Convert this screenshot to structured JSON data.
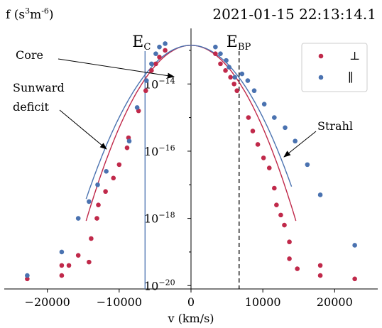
{
  "chart_data": {
    "type": "scatter",
    "timestamp": "2021-01-15 22:13:14.1",
    "ylabel": "f (s^3m^-6)",
    "xlabel": "v (km/s)",
    "xlim": [
      -26000,
      26000
    ],
    "ylim_log10": [
      -20.1,
      -12.6
    ],
    "yscale": "log",
    "x_ticks": [
      -20000,
      -10000,
      0,
      10000,
      20000
    ],
    "x_tick_labels": [
      "−20000",
      "−10000",
      "0",
      "10000",
      "20000"
    ],
    "y_ticks_log10": [
      -14,
      -16,
      -18,
      -20
    ],
    "y_tick_base": "10",
    "y_tick_exponents": [
      "−14",
      "−16",
      "−18",
      "−20"
    ],
    "legend": {
      "placement": "top-right",
      "entries": [
        "⊥",
        "∥"
      ]
    },
    "colors": {
      "perp": "#c0294a",
      "para": "#4a72b0"
    },
    "series": [
      {
        "name": "⊥",
        "color": "#c0294a",
        "points": [
          [
            -22800,
            -19.8
          ],
          [
            -18000,
            -19.7
          ],
          [
            -18000,
            -19.4
          ],
          [
            -17000,
            -19.4
          ],
          [
            -15700,
            -19.1
          ],
          [
            -14200,
            -19.3
          ],
          [
            -13900,
            -18.6
          ],
          [
            -13100,
            -18.0
          ],
          [
            -12900,
            -17.6
          ],
          [
            -11900,
            -17.2
          ],
          [
            -10800,
            -16.8
          ],
          [
            -10000,
            -16.4
          ],
          [
            -8900,
            -15.9
          ],
          [
            -8700,
            -15.6
          ],
          [
            -7300,
            -14.8
          ],
          [
            -6300,
            -14.2
          ],
          [
            -5500,
            -13.6
          ],
          [
            -4900,
            -13.4
          ],
          [
            -4400,
            -13.2
          ],
          [
            -3600,
            -13.0
          ],
          [
            3400,
            -13.1
          ],
          [
            4100,
            -13.4
          ],
          [
            4800,
            -13.6
          ],
          [
            5500,
            -13.8
          ],
          [
            6000,
            -14.0
          ],
          [
            6400,
            -14.2
          ],
          [
            8000,
            -15.0
          ],
          [
            8600,
            -15.4
          ],
          [
            9300,
            -15.8
          ],
          [
            10100,
            -16.2
          ],
          [
            10900,
            -16.5
          ],
          [
            11600,
            -17.1
          ],
          [
            11900,
            -17.6
          ],
          [
            12500,
            -17.9
          ],
          [
            13000,
            -18.2
          ],
          [
            13700,
            -18.7
          ],
          [
            13700,
            -19.2
          ],
          [
            14800,
            -19.5
          ],
          [
            18000,
            -19.4
          ],
          [
            18000,
            -19.7
          ],
          [
            22800,
            -19.8
          ]
        ]
      },
      {
        "name": "∥",
        "color": "#4a72b0",
        "points": [
          [
            -22800,
            -19.7
          ],
          [
            -18000,
            -19.0
          ],
          [
            -15700,
            -18.0
          ],
          [
            -14200,
            -17.5
          ],
          [
            -13000,
            -17.0
          ],
          [
            -11800,
            -16.6
          ],
          [
            -8600,
            -15.7
          ],
          [
            -7500,
            -14.7
          ],
          [
            -6200,
            -13.9
          ],
          [
            -5500,
            -13.4
          ],
          [
            -4900,
            -13.1
          ],
          [
            -4400,
            -12.9
          ],
          [
            -3600,
            -12.8
          ],
          [
            3400,
            -12.9
          ],
          [
            4100,
            -13.1
          ],
          [
            4900,
            -13.3
          ],
          [
            5300,
            -13.5
          ],
          [
            6100,
            -13.8
          ],
          [
            7100,
            -13.7
          ],
          [
            7900,
            -13.9
          ],
          [
            8800,
            -14.2
          ],
          [
            10200,
            -14.6
          ],
          [
            11600,
            -15.0
          ],
          [
            13100,
            -15.3
          ],
          [
            14500,
            -15.7
          ],
          [
            16200,
            -16.4
          ],
          [
            18000,
            -17.3
          ],
          [
            22800,
            -18.8
          ]
        ]
      }
    ],
    "fit_curves": [
      {
        "series": "⊥",
        "color": "#c0294a",
        "peak_log10": -12.85,
        "thermal_speed": 4210,
        "x_range": [
          -14600,
          14600
        ]
      },
      {
        "series": "∥",
        "color": "#4a72b0",
        "peak_log10": -12.85,
        "thermal_speed": 4500,
        "x_range": [
          -14600,
          14000
        ]
      }
    ],
    "vertical_lines": [
      {
        "label_base": "E",
        "label_sub": "C",
        "x": -6400,
        "style": "solid",
        "color": "#4a72b0"
      },
      {
        "label_base": "E",
        "label_sub": "BP",
        "x": 6700,
        "style": "dashed",
        "color": "#000000"
      }
    ],
    "annotations": [
      {
        "text": "Core"
      },
      {
        "text": "Sunward deficit"
      },
      {
        "text": "Strahl"
      }
    ]
  }
}
